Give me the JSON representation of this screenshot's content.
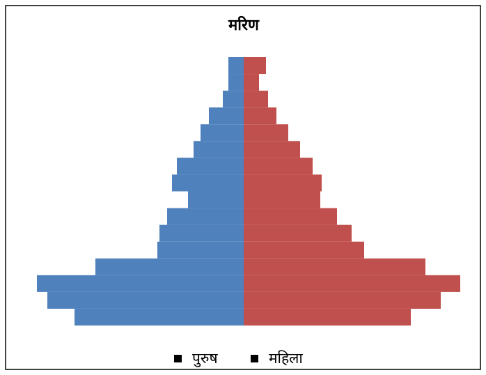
{
  "chart_data": {
    "type": "pyramid",
    "title": "मरिण",
    "categories": [
      null,
      null,
      null,
      null,
      null,
      null,
      null,
      null,
      null,
      null,
      null,
      null,
      null,
      null,
      null,
      null
    ],
    "series": [
      {
        "name": "पुरुष",
        "color": "#4f81bd",
        "values": [
          22,
          22,
          30,
          50,
          62,
          72,
          96,
          103,
          80,
          110,
          121,
          124,
          213,
          297,
          282,
          243
        ]
      },
      {
        "name": "महिला",
        "color": "#c0504d",
        "values": [
          32,
          22,
          35,
          47,
          64,
          81,
          99,
          112,
          110,
          134,
          155,
          173,
          261,
          311,
          283,
          240
        ]
      }
    ],
    "legend": "bottom"
  }
}
